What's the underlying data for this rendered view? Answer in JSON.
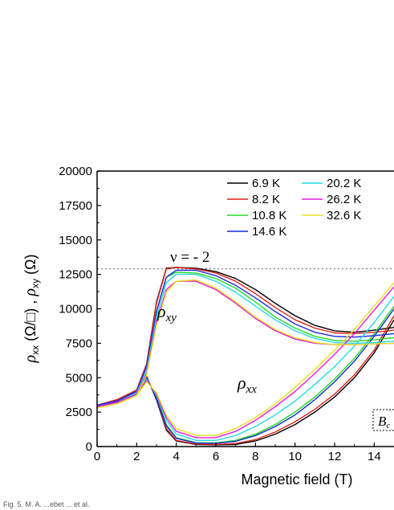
{
  "caption": "Fig. 5. M. A. ...ebet ... et al.",
  "chart_data": {
    "type": "line",
    "xlabel": "Magnetic field (T)",
    "ylabel": "ρxx (Ω/□) , ρxy (Ω)",
    "ylabel_parts": {
      "rho1": "ρ",
      "sub1": "xx",
      "unit1": " (Ω/□) , ",
      "rho2": "ρ",
      "sub2": "xy",
      "unit2": " (Ω)"
    },
    "xlim": [
      0,
      15
    ],
    "ylim": [
      0,
      20000
    ],
    "x_ticks": [
      "0",
      "2",
      "4",
      "6",
      "8",
      "10",
      "12",
      "14"
    ],
    "y_ticks": [
      "0",
      "2500",
      "5000",
      "7500",
      "10000",
      "12500",
      "15000",
      "17500",
      "20000"
    ],
    "reference_line": {
      "y": 12906,
      "style": "dotted"
    },
    "annotations": {
      "nu_label": "ν = - 2",
      "rho_xy": "ρ",
      "rho_xy_sub": "xy",
      "rho_xx": "ρ",
      "rho_xx_sub": "xx",
      "bc_label": "B",
      "bc_sub": "c"
    },
    "legend_position": "top-right",
    "series": [
      {
        "name": "6.9 K",
        "color": "#000000",
        "rho_xy": [
          [
            0,
            3000
          ],
          [
            1,
            3400
          ],
          [
            2,
            4100
          ],
          [
            2.5,
            6000
          ],
          [
            3,
            10500
          ],
          [
            3.5,
            12950
          ],
          [
            4,
            13000
          ],
          [
            5,
            12950
          ],
          [
            6,
            12700
          ],
          [
            7,
            12200
          ],
          [
            8,
            11400
          ],
          [
            9,
            10400
          ],
          [
            10,
            9500
          ],
          [
            11,
            8800
          ],
          [
            12,
            8400
          ],
          [
            13,
            8300
          ],
          [
            14,
            8450
          ],
          [
            15,
            8650
          ]
        ],
        "rho_xx": [
          [
            0,
            3000
          ],
          [
            1,
            3300
          ],
          [
            2,
            4100
          ],
          [
            2.5,
            5100
          ],
          [
            3,
            3400
          ],
          [
            3.5,
            1200
          ],
          [
            4,
            400
          ],
          [
            5,
            150
          ],
          [
            6,
            120
          ],
          [
            7,
            150
          ],
          [
            8,
            400
          ],
          [
            9,
            900
          ],
          [
            10,
            1600
          ],
          [
            11,
            2500
          ],
          [
            12,
            3600
          ],
          [
            13,
            5000
          ],
          [
            14,
            6800
          ],
          [
            15,
            9200
          ]
        ]
      },
      {
        "name": "8.2 K",
        "color": "#e0201a",
        "rho_xy": [
          [
            0,
            3000
          ],
          [
            1,
            3400
          ],
          [
            2,
            4100
          ],
          [
            2.5,
            6000
          ],
          [
            3,
            10400
          ],
          [
            3.5,
            12900
          ],
          [
            4,
            13000
          ],
          [
            5,
            12900
          ],
          [
            6,
            12600
          ],
          [
            7,
            12000
          ],
          [
            8,
            11100
          ],
          [
            9,
            10100
          ],
          [
            10,
            9200
          ],
          [
            11,
            8600
          ],
          [
            12,
            8250
          ],
          [
            13,
            8200
          ],
          [
            14,
            8300
          ],
          [
            15,
            8450
          ]
        ],
        "rho_xx": [
          [
            0,
            3000
          ],
          [
            1,
            3300
          ],
          [
            2,
            4100
          ],
          [
            2.5,
            5100
          ],
          [
            3,
            3500
          ],
          [
            3.5,
            1300
          ],
          [
            4,
            450
          ],
          [
            5,
            180
          ],
          [
            6,
            150
          ],
          [
            7,
            220
          ],
          [
            8,
            500
          ],
          [
            9,
            1050
          ],
          [
            10,
            1800
          ],
          [
            11,
            2700
          ],
          [
            12,
            3800
          ],
          [
            13,
            5200
          ],
          [
            14,
            7000
          ],
          [
            15,
            9500
          ]
        ]
      },
      {
        "name": "10.8 K",
        "color": "#22d822",
        "rho_xy": [
          [
            0,
            3000
          ],
          [
            1,
            3300
          ],
          [
            2,
            4000
          ],
          [
            2.5,
            5800
          ],
          [
            3,
            9800
          ],
          [
            3.5,
            12300
          ],
          [
            4,
            12650
          ],
          [
            5,
            12600
          ],
          [
            6,
            12200
          ],
          [
            7,
            11500
          ],
          [
            8,
            10500
          ],
          [
            9,
            9400
          ],
          [
            10,
            8600
          ],
          [
            11,
            8000
          ],
          [
            12,
            7700
          ],
          [
            13,
            7650
          ],
          [
            14,
            7750
          ],
          [
            15,
            7900
          ]
        ],
        "rho_xx": [
          [
            0,
            3000
          ],
          [
            1,
            3300
          ],
          [
            2,
            4000
          ],
          [
            2.5,
            5000
          ],
          [
            3,
            3600
          ],
          [
            3.5,
            1600
          ],
          [
            4,
            650
          ],
          [
            5,
            280
          ],
          [
            6,
            260
          ],
          [
            7,
            450
          ],
          [
            8,
            900
          ],
          [
            9,
            1600
          ],
          [
            10,
            2500
          ],
          [
            11,
            3600
          ],
          [
            12,
            4900
          ],
          [
            13,
            6400
          ],
          [
            14,
            8200
          ],
          [
            15,
            10200
          ]
        ]
      },
      {
        "name": "14.6 K",
        "color": "#1a2ad8",
        "rho_xy": [
          [
            0,
            3000
          ],
          [
            1,
            3300
          ],
          [
            2,
            4000
          ],
          [
            2.5,
            5800
          ],
          [
            3,
            9800
          ],
          [
            3.5,
            12300
          ],
          [
            4,
            12800
          ],
          [
            5,
            12800
          ],
          [
            6,
            12400
          ],
          [
            7,
            11700
          ],
          [
            8,
            10800
          ],
          [
            9,
            9800
          ],
          [
            10,
            8900
          ],
          [
            11,
            8300
          ],
          [
            12,
            8000
          ],
          [
            13,
            7950
          ],
          [
            14,
            8050
          ],
          [
            15,
            8200
          ]
        ],
        "rho_xx": [
          [
            0,
            3000
          ],
          [
            1,
            3300
          ],
          [
            2,
            4000
          ],
          [
            2.5,
            5000
          ],
          [
            3,
            3500
          ],
          [
            3.5,
            1500
          ],
          [
            4,
            600
          ],
          [
            5,
            250
          ],
          [
            6,
            230
          ],
          [
            7,
            380
          ],
          [
            8,
            800
          ],
          [
            9,
            1450
          ],
          [
            10,
            2300
          ],
          [
            11,
            3400
          ],
          [
            12,
            4700
          ],
          [
            13,
            6200
          ],
          [
            14,
            8000
          ],
          [
            15,
            10000
          ]
        ]
      },
      {
        "name": "20.2 K",
        "color": "#22d8e8",
        "rho_xy": [
          [
            0,
            2900
          ],
          [
            1,
            3200
          ],
          [
            2,
            3900
          ],
          [
            2.5,
            5500
          ],
          [
            3,
            9400
          ],
          [
            3.5,
            11900
          ],
          [
            4,
            12500
          ],
          [
            5,
            12500
          ],
          [
            6,
            12000
          ],
          [
            7,
            11200
          ],
          [
            8,
            10200
          ],
          [
            9,
            9200
          ],
          [
            10,
            8400
          ],
          [
            11,
            7850
          ],
          [
            12,
            7550
          ],
          [
            13,
            7500
          ],
          [
            14,
            7550
          ],
          [
            15,
            7650
          ]
        ],
        "rho_xx": [
          [
            0,
            2900
          ],
          [
            1,
            3200
          ],
          [
            2,
            3900
          ],
          [
            2.5,
            4900
          ],
          [
            3,
            3700
          ],
          [
            3.5,
            1900
          ],
          [
            4,
            900
          ],
          [
            5,
            450
          ],
          [
            6,
            450
          ],
          [
            7,
            800
          ],
          [
            8,
            1450
          ],
          [
            9,
            2300
          ],
          [
            10,
            3300
          ],
          [
            11,
            4500
          ],
          [
            12,
            5800
          ],
          [
            13,
            7300
          ],
          [
            14,
            9000
          ],
          [
            15,
            10900
          ]
        ]
      },
      {
        "name": "26.2 K",
        "color": "#e81ae0",
        "rho_xy": [
          [
            0,
            2900
          ],
          [
            1,
            3200
          ],
          [
            2,
            3800
          ],
          [
            2.5,
            5300
          ],
          [
            3,
            9000
          ],
          [
            3.5,
            11400
          ],
          [
            4,
            12000
          ],
          [
            5,
            12000
          ],
          [
            6,
            11400
          ],
          [
            7,
            10400
          ],
          [
            8,
            9300
          ],
          [
            9,
            8400
          ],
          [
            10,
            7800
          ],
          [
            11,
            7500
          ],
          [
            12,
            7400
          ],
          [
            13,
            7400
          ],
          [
            14,
            7450
          ],
          [
            15,
            7500
          ]
        ],
        "rho_xx": [
          [
            0,
            2900
          ],
          [
            1,
            3200
          ],
          [
            2,
            3800
          ],
          [
            2.5,
            4800
          ],
          [
            3,
            3800
          ],
          [
            3.5,
            2100
          ],
          [
            4,
            1100
          ],
          [
            5,
            650
          ],
          [
            6,
            650
          ],
          [
            7,
            1100
          ],
          [
            8,
            1900
          ],
          [
            9,
            2900
          ],
          [
            10,
            4000
          ],
          [
            11,
            5300
          ],
          [
            12,
            6700
          ],
          [
            13,
            8200
          ],
          [
            14,
            9900
          ],
          [
            15,
            11600
          ]
        ]
      },
      {
        "name": "32.6 K",
        "color": "#e8e21a",
        "rho_xy": [
          [
            0,
            2800
          ],
          [
            1,
            3100
          ],
          [
            2,
            3700
          ],
          [
            2.5,
            5200
          ],
          [
            3,
            8800
          ],
          [
            3.5,
            11200
          ],
          [
            4,
            12000
          ],
          [
            5,
            12100
          ],
          [
            6,
            11500
          ],
          [
            7,
            10500
          ],
          [
            8,
            9400
          ],
          [
            9,
            8500
          ],
          [
            10,
            7900
          ],
          [
            11,
            7550
          ],
          [
            12,
            7400
          ],
          [
            13,
            7400
          ],
          [
            14,
            7450
          ],
          [
            15,
            7500
          ]
        ],
        "rho_xx": [
          [
            0,
            2800
          ],
          [
            1,
            3100
          ],
          [
            2,
            3700
          ],
          [
            2.5,
            4700
          ],
          [
            3,
            3900
          ],
          [
            3.5,
            2300
          ],
          [
            4,
            1300
          ],
          [
            5,
            800
          ],
          [
            6,
            800
          ],
          [
            7,
            1300
          ],
          [
            8,
            2100
          ],
          [
            9,
            3100
          ],
          [
            10,
            4300
          ],
          [
            11,
            5600
          ],
          [
            12,
            7000
          ],
          [
            13,
            8500
          ],
          [
            14,
            10200
          ],
          [
            15,
            11900
          ]
        ]
      }
    ]
  }
}
